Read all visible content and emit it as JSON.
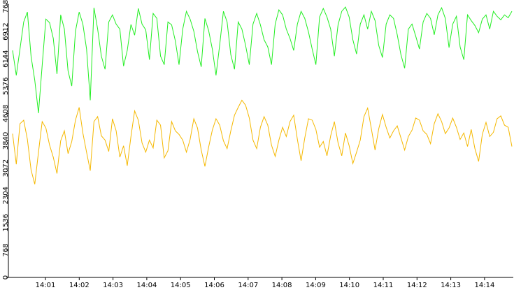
{
  "chart_data": {
    "type": "line",
    "title": "",
    "xlabel": "",
    "ylabel": "",
    "x_ticks": [
      "14:01",
      "14:02",
      "14:03",
      "14:04",
      "14:05",
      "14:06",
      "14:07",
      "14:08",
      "14:09",
      "14:10",
      "14:11",
      "14:12",
      "14:13",
      "14:14"
    ],
    "y_ticks": [
      "0",
      "768",
      "1536",
      "2304",
      "3072",
      "3840",
      "4608",
      "5376",
      "6144",
      "6912",
      "7680"
    ],
    "xlim_minutes": [
      14.5,
      15.0
    ],
    "ylim": [
      0,
      7680
    ],
    "grid": false,
    "legend": "none",
    "series_colors": [
      "#22ee22",
      "#f5b800"
    ],
    "series": [
      {
        "values": [
          6380,
          5680,
          6420,
          7180,
          7460,
          6210,
          5540,
          4620,
          5960,
          7260,
          7160,
          6720,
          5720,
          7380,
          6980,
          5800,
          5380,
          6920,
          7460,
          7120,
          6420,
          4980,
          7580,
          6980,
          6220,
          5850,
          7180,
          7380,
          7120,
          6980,
          5940,
          6380,
          7110,
          6810,
          7560,
          7120,
          6960,
          6120,
          7420,
          7280,
          6220,
          5980,
          7180,
          7100,
          6650,
          5980,
          6980,
          7480,
          7260,
          6920,
          6350,
          5920,
          7280,
          6940,
          6420,
          5680,
          6540,
          7480,
          7180,
          6260,
          5850,
          7180,
          6980,
          6520,
          5980,
          7120,
          7420,
          7100,
          6680,
          6480,
          5980,
          7120,
          7520,
          7380,
          6980,
          6720,
          6380,
          7120,
          7480,
          7280,
          6900,
          6420,
          5980,
          7320,
          7560,
          7320,
          6980,
          6220,
          7100,
          7480,
          7600,
          7320,
          6680,
          6280,
          7120,
          7380,
          6980,
          7480,
          7220,
          6520,
          6180,
          7120,
          7380,
          7280,
          6820,
          6260,
          5880,
          6980,
          7120,
          6780,
          6420,
          7180,
          7420,
          7280,
          6820,
          7380,
          7580,
          7280,
          6460,
          7120,
          7340,
          6480,
          6120,
          7380,
          7220,
          7080,
          6880,
          7260,
          7380,
          6980,
          7480,
          7340,
          7240,
          7380,
          7300,
          7480
        ]
      },
      {
        "values": [
          4040,
          3180,
          4320,
          4420,
          3880,
          3020,
          2620,
          3520,
          4380,
          4200,
          3720,
          3380,
          2920,
          3840,
          4120,
          3480,
          3820,
          4420,
          4780,
          4060,
          3520,
          3000,
          4380,
          4520,
          3980,
          3860,
          3540,
          4460,
          4120,
          3380,
          3700,
          3140,
          3960,
          4680,
          4420,
          3780,
          3520,
          3860,
          3640,
          4420,
          4280,
          3360,
          3560,
          4380,
          4120,
          4020,
          3860,
          3520,
          3880,
          4460,
          4200,
          3580,
          3120,
          3660,
          4140,
          4460,
          4280,
          3840,
          3620,
          4120,
          4560,
          4780,
          4980,
          4840,
          4480,
          3860,
          3620,
          4220,
          4520,
          4280,
          3720,
          3400,
          3860,
          4220,
          3960,
          4380,
          4560,
          3880,
          3280,
          3920,
          4460,
          4420,
          4160,
          3660,
          3820,
          3420,
          3980,
          4380,
          3780,
          3420,
          4060,
          3700,
          3200,
          3520,
          3860,
          4520,
          4760,
          4180,
          3580,
          4180,
          4580,
          4220,
          3920,
          4120,
          4260,
          3920,
          3580,
          3960,
          4140,
          4480,
          4420,
          4120,
          4020,
          3760,
          4320,
          4600,
          4380,
          4040,
          4200,
          4480,
          4220,
          3880,
          4060,
          3680,
          4160,
          3620,
          3260,
          4020,
          4360,
          3960,
          4080,
          4460,
          4540,
          4280,
          4220,
          3680
        ]
      }
    ]
  }
}
